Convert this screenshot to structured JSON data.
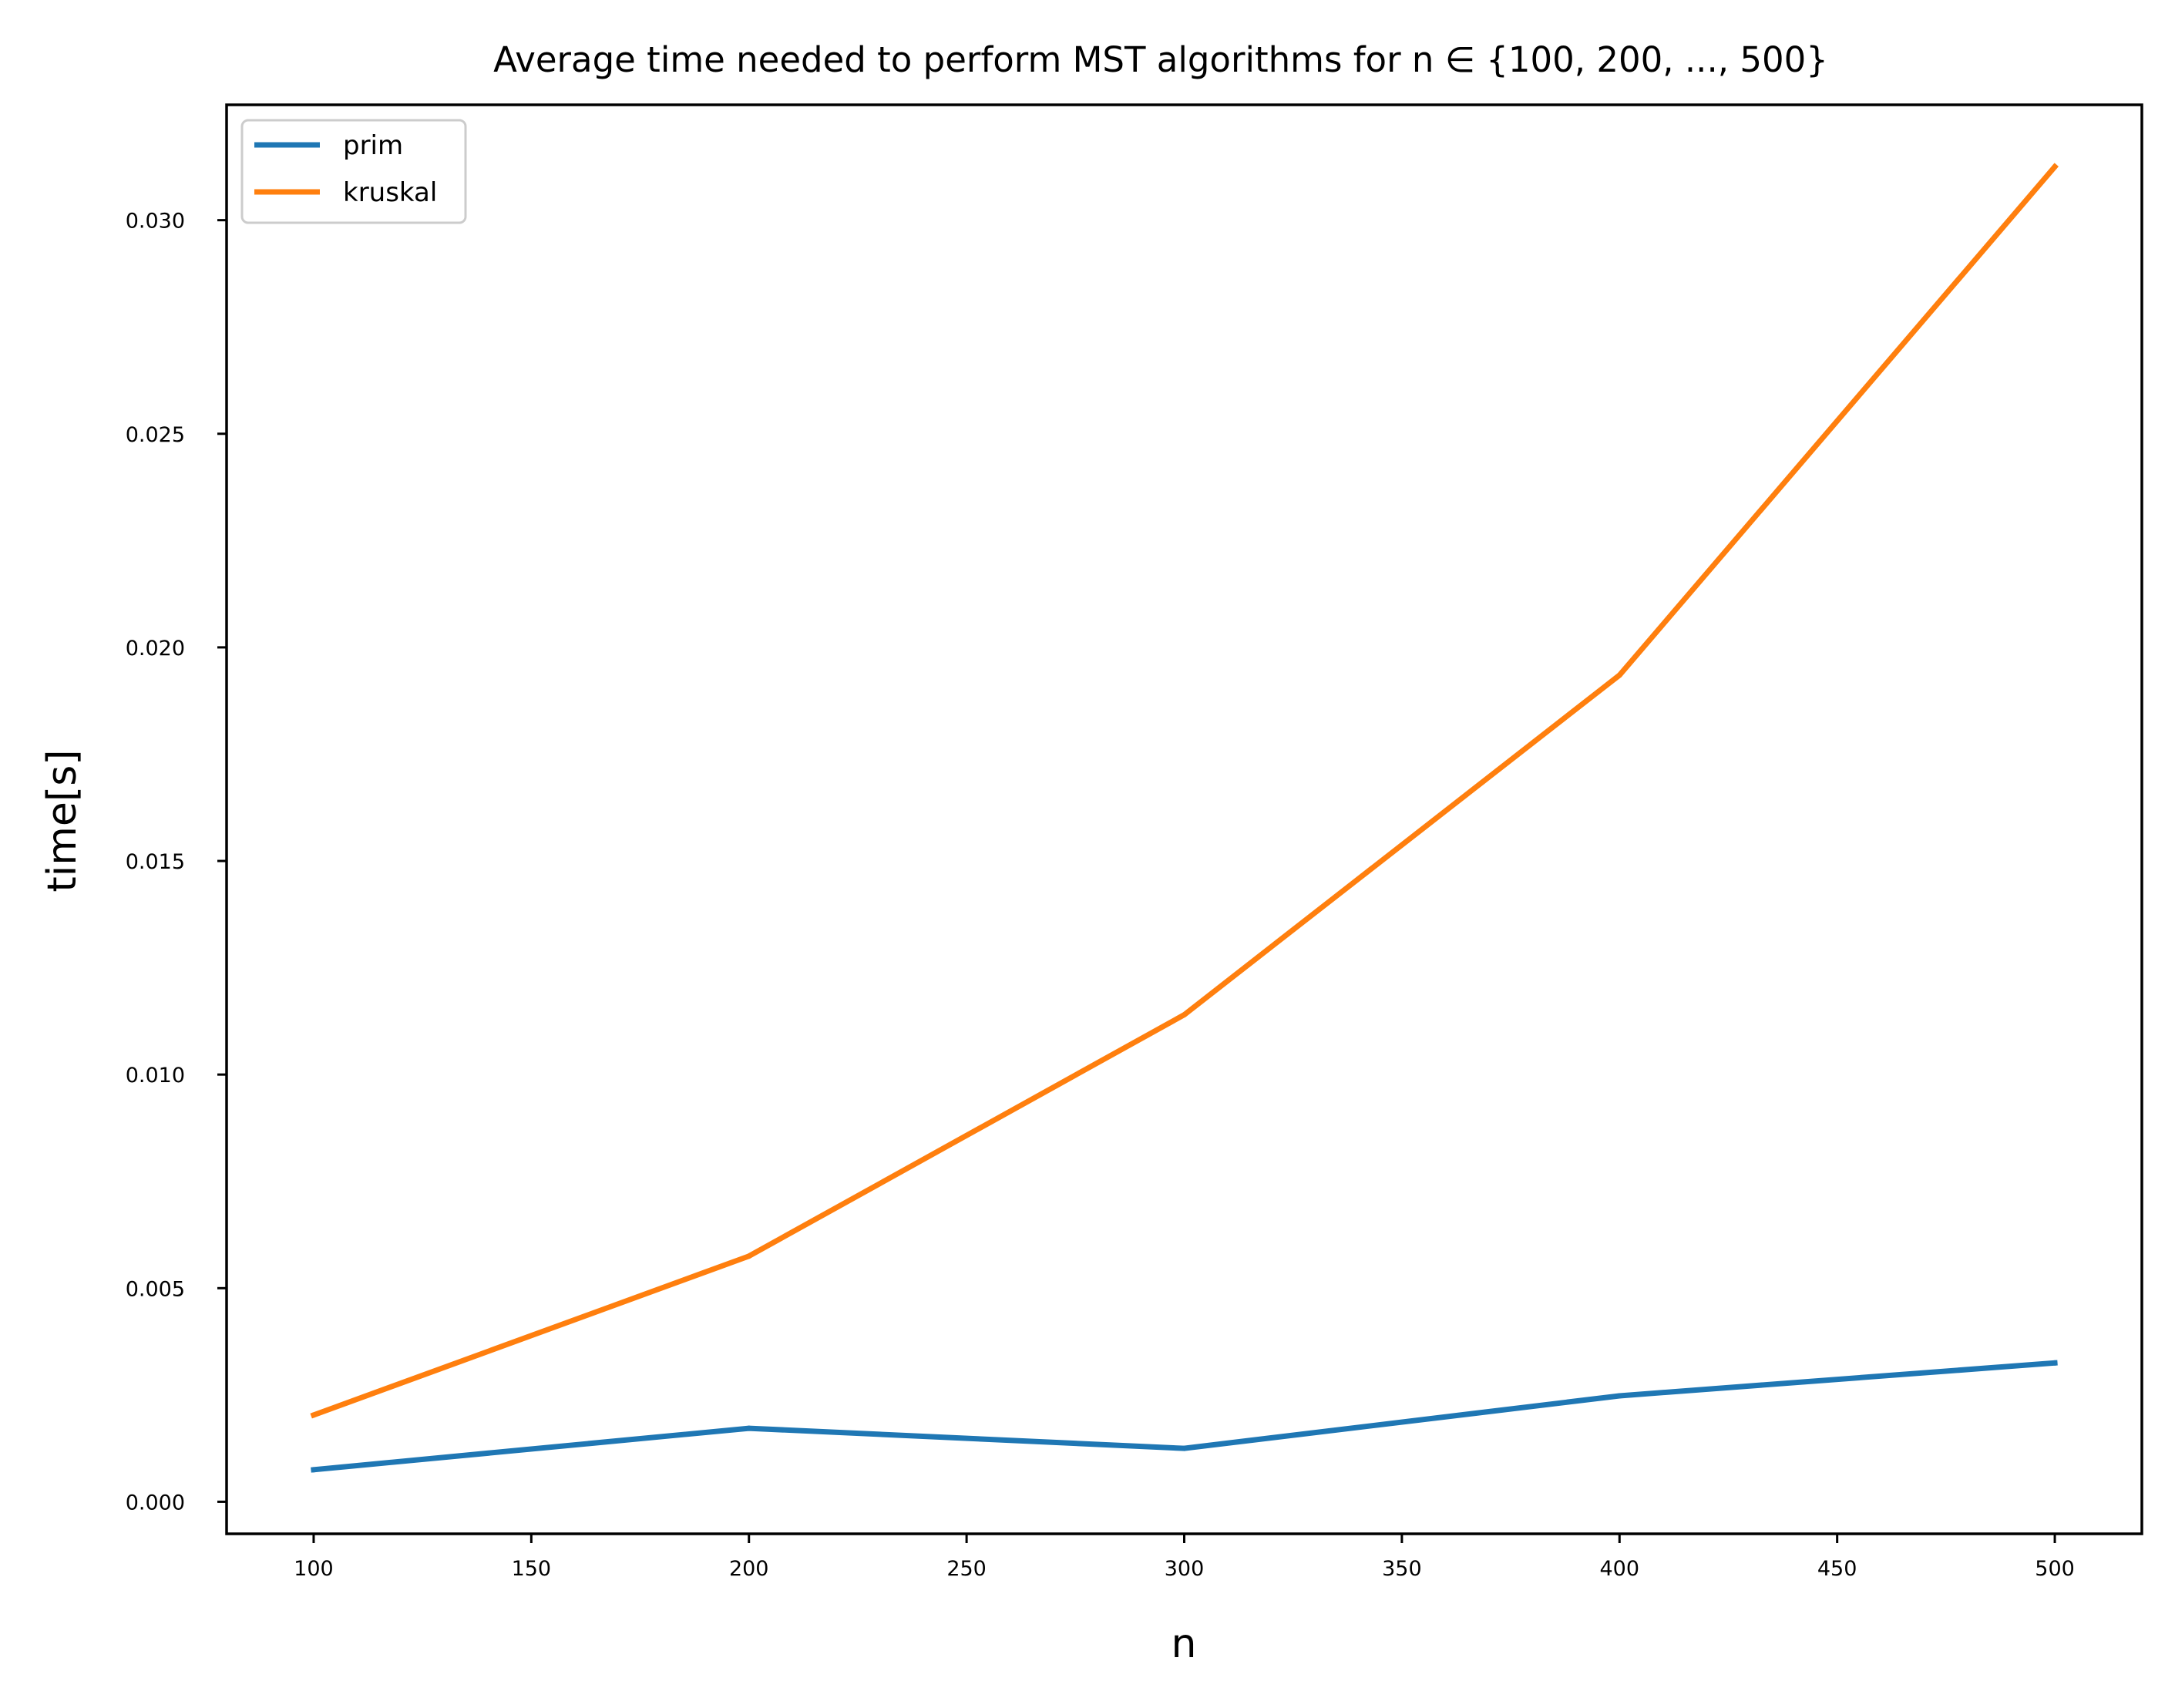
{
  "chart_data": {
    "type": "line",
    "title": "Average time needed to perform MST algorithms for n ∈ {100, 200, ..., 500}",
    "xlabel": "n",
    "ylabel": "time[s]",
    "x": [
      100,
      200,
      300,
      400,
      500
    ],
    "xlim": [
      80,
      520
    ],
    "ylim": [
      -0.00075,
      0.0327
    ],
    "xticks": [
      100,
      150,
      200,
      250,
      300,
      350,
      400,
      450,
      500
    ],
    "xtick_labels": [
      "100",
      "150",
      "200",
      "250",
      "300",
      "350",
      "400",
      "450",
      "500"
    ],
    "yticks": [
      0.0,
      0.005,
      0.01,
      0.015,
      0.02,
      0.025,
      0.03
    ],
    "ytick_labels": [
      "0.000",
      "0.005",
      "0.010",
      "0.015",
      "0.020",
      "0.025",
      "0.030"
    ],
    "grid": false,
    "legend_position": "top-left",
    "series": [
      {
        "name": "prim",
        "color": "#1f77b4",
        "values": [
          0.00075,
          0.00172,
          0.00125,
          0.00248,
          0.00325
        ]
      },
      {
        "name": "kruskal",
        "color": "#ff7f0e",
        "values": [
          0.00203,
          0.00575,
          0.0114,
          0.01935,
          0.03125
        ]
      }
    ]
  }
}
